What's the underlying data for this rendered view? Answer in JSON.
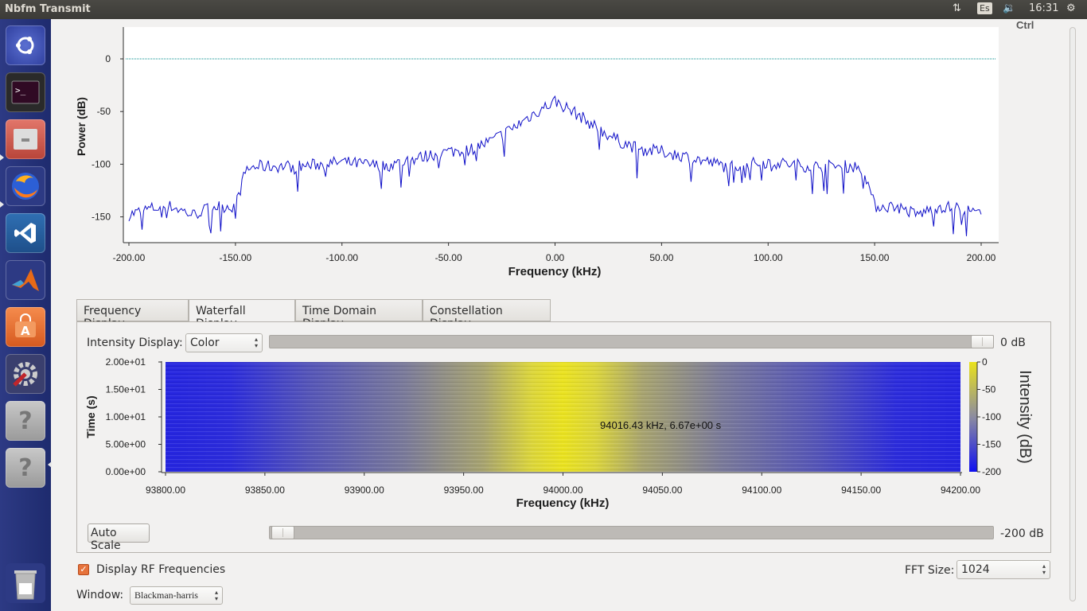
{
  "window": {
    "title": "Nbfm Transmit"
  },
  "topbar": {
    "keyboard": "Es",
    "clock": "16:31"
  },
  "launcher": [
    {
      "name": "ubuntu-dash-icon"
    },
    {
      "name": "terminal-icon"
    },
    {
      "name": "file-manager-icon"
    },
    {
      "name": "firefox-icon"
    },
    {
      "name": "vscode-icon"
    },
    {
      "name": "matlab-icon"
    },
    {
      "name": "software-center-icon"
    },
    {
      "name": "system-settings-icon"
    },
    {
      "name": "unknown-app-icon"
    },
    {
      "name": "unknown-app-icon-2"
    },
    {
      "name": "trash-icon"
    }
  ],
  "colors": {
    "trace": "#1010c8",
    "refline": "#008b8b",
    "wf_low": "#2525e0",
    "wf_high": "#e8e020",
    "accent": "#e6733c"
  },
  "freq_plot": {
    "ylabel": "Power (dB)",
    "xlabel": "Frequency (kHz)",
    "y_ticks": [
      "0",
      "-50",
      "-100",
      "-150"
    ],
    "x_ticks": [
      "-200.00",
      "-150.00",
      "-100.00",
      "-50.00",
      "0.00",
      "50.00",
      "100.00",
      "150.00",
      "200.00"
    ],
    "partial_label": "Ctrl"
  },
  "tabs": [
    "Frequency Display",
    "Waterfall Display",
    "Time Domain Display",
    "Constellation Display"
  ],
  "waterfall_tab": {
    "intensity_label": "Intensity Display:",
    "intensity_value": "Color",
    "max_slider_label": "0 dB",
    "max_slider_value": 0,
    "min_slider_label": "-200 dB",
    "min_slider_value": -200,
    "ylabel": "Time (s)",
    "xlabel": "Frequency (kHz)",
    "y_ticks": [
      "2.00e+01",
      "1.50e+01",
      "1.00e+01",
      "5.00e+00",
      "0.00e+00"
    ],
    "x_ticks": [
      "93800.00",
      "93850.00",
      "93900.00",
      "93950.00",
      "94000.00",
      "94050.00",
      "94100.00",
      "94150.00",
      "94200.00"
    ],
    "cursor_readout": "94016.43 kHz, 6.67e+00 s",
    "colorbar_ticks": [
      "0",
      "-50",
      "-100",
      "-150",
      "-200"
    ],
    "colorbar_label": "Intensity (dB)",
    "auto_scale": "Auto Scale"
  },
  "bottom": {
    "display_rf": "Display RF Frequencies",
    "fft_label": "FFT Size:",
    "fft_value": "1024",
    "window_label": "Window:",
    "window_value": "Blackman-harris"
  },
  "chart_data": {
    "type": "line",
    "title": "",
    "xlabel": "Frequency (kHz)",
    "ylabel": "Power (dB)",
    "xlim": [
      -200,
      200
    ],
    "ylim": [
      -170,
      15
    ],
    "reference_line": 0,
    "x": [
      -200,
      -190,
      -180,
      -170,
      -160,
      -150,
      -145,
      -140,
      -120,
      -100,
      -80,
      -60,
      -50,
      -40,
      -30,
      -20,
      -10,
      0,
      10,
      20,
      30,
      40,
      50,
      60,
      80,
      100,
      120,
      140,
      145,
      150,
      160,
      170,
      180,
      190,
      200
    ],
    "y": [
      -148,
      -142,
      -140,
      -148,
      -140,
      -140,
      -105,
      -102,
      -102,
      -98,
      -102,
      -92,
      -88,
      -86,
      -78,
      -66,
      -52,
      -40,
      -52,
      -66,
      -78,
      -86,
      -88,
      -92,
      -102,
      -98,
      -102,
      -102,
      -105,
      -140,
      -140,
      -148,
      -140,
      -142,
      -148
    ]
  }
}
